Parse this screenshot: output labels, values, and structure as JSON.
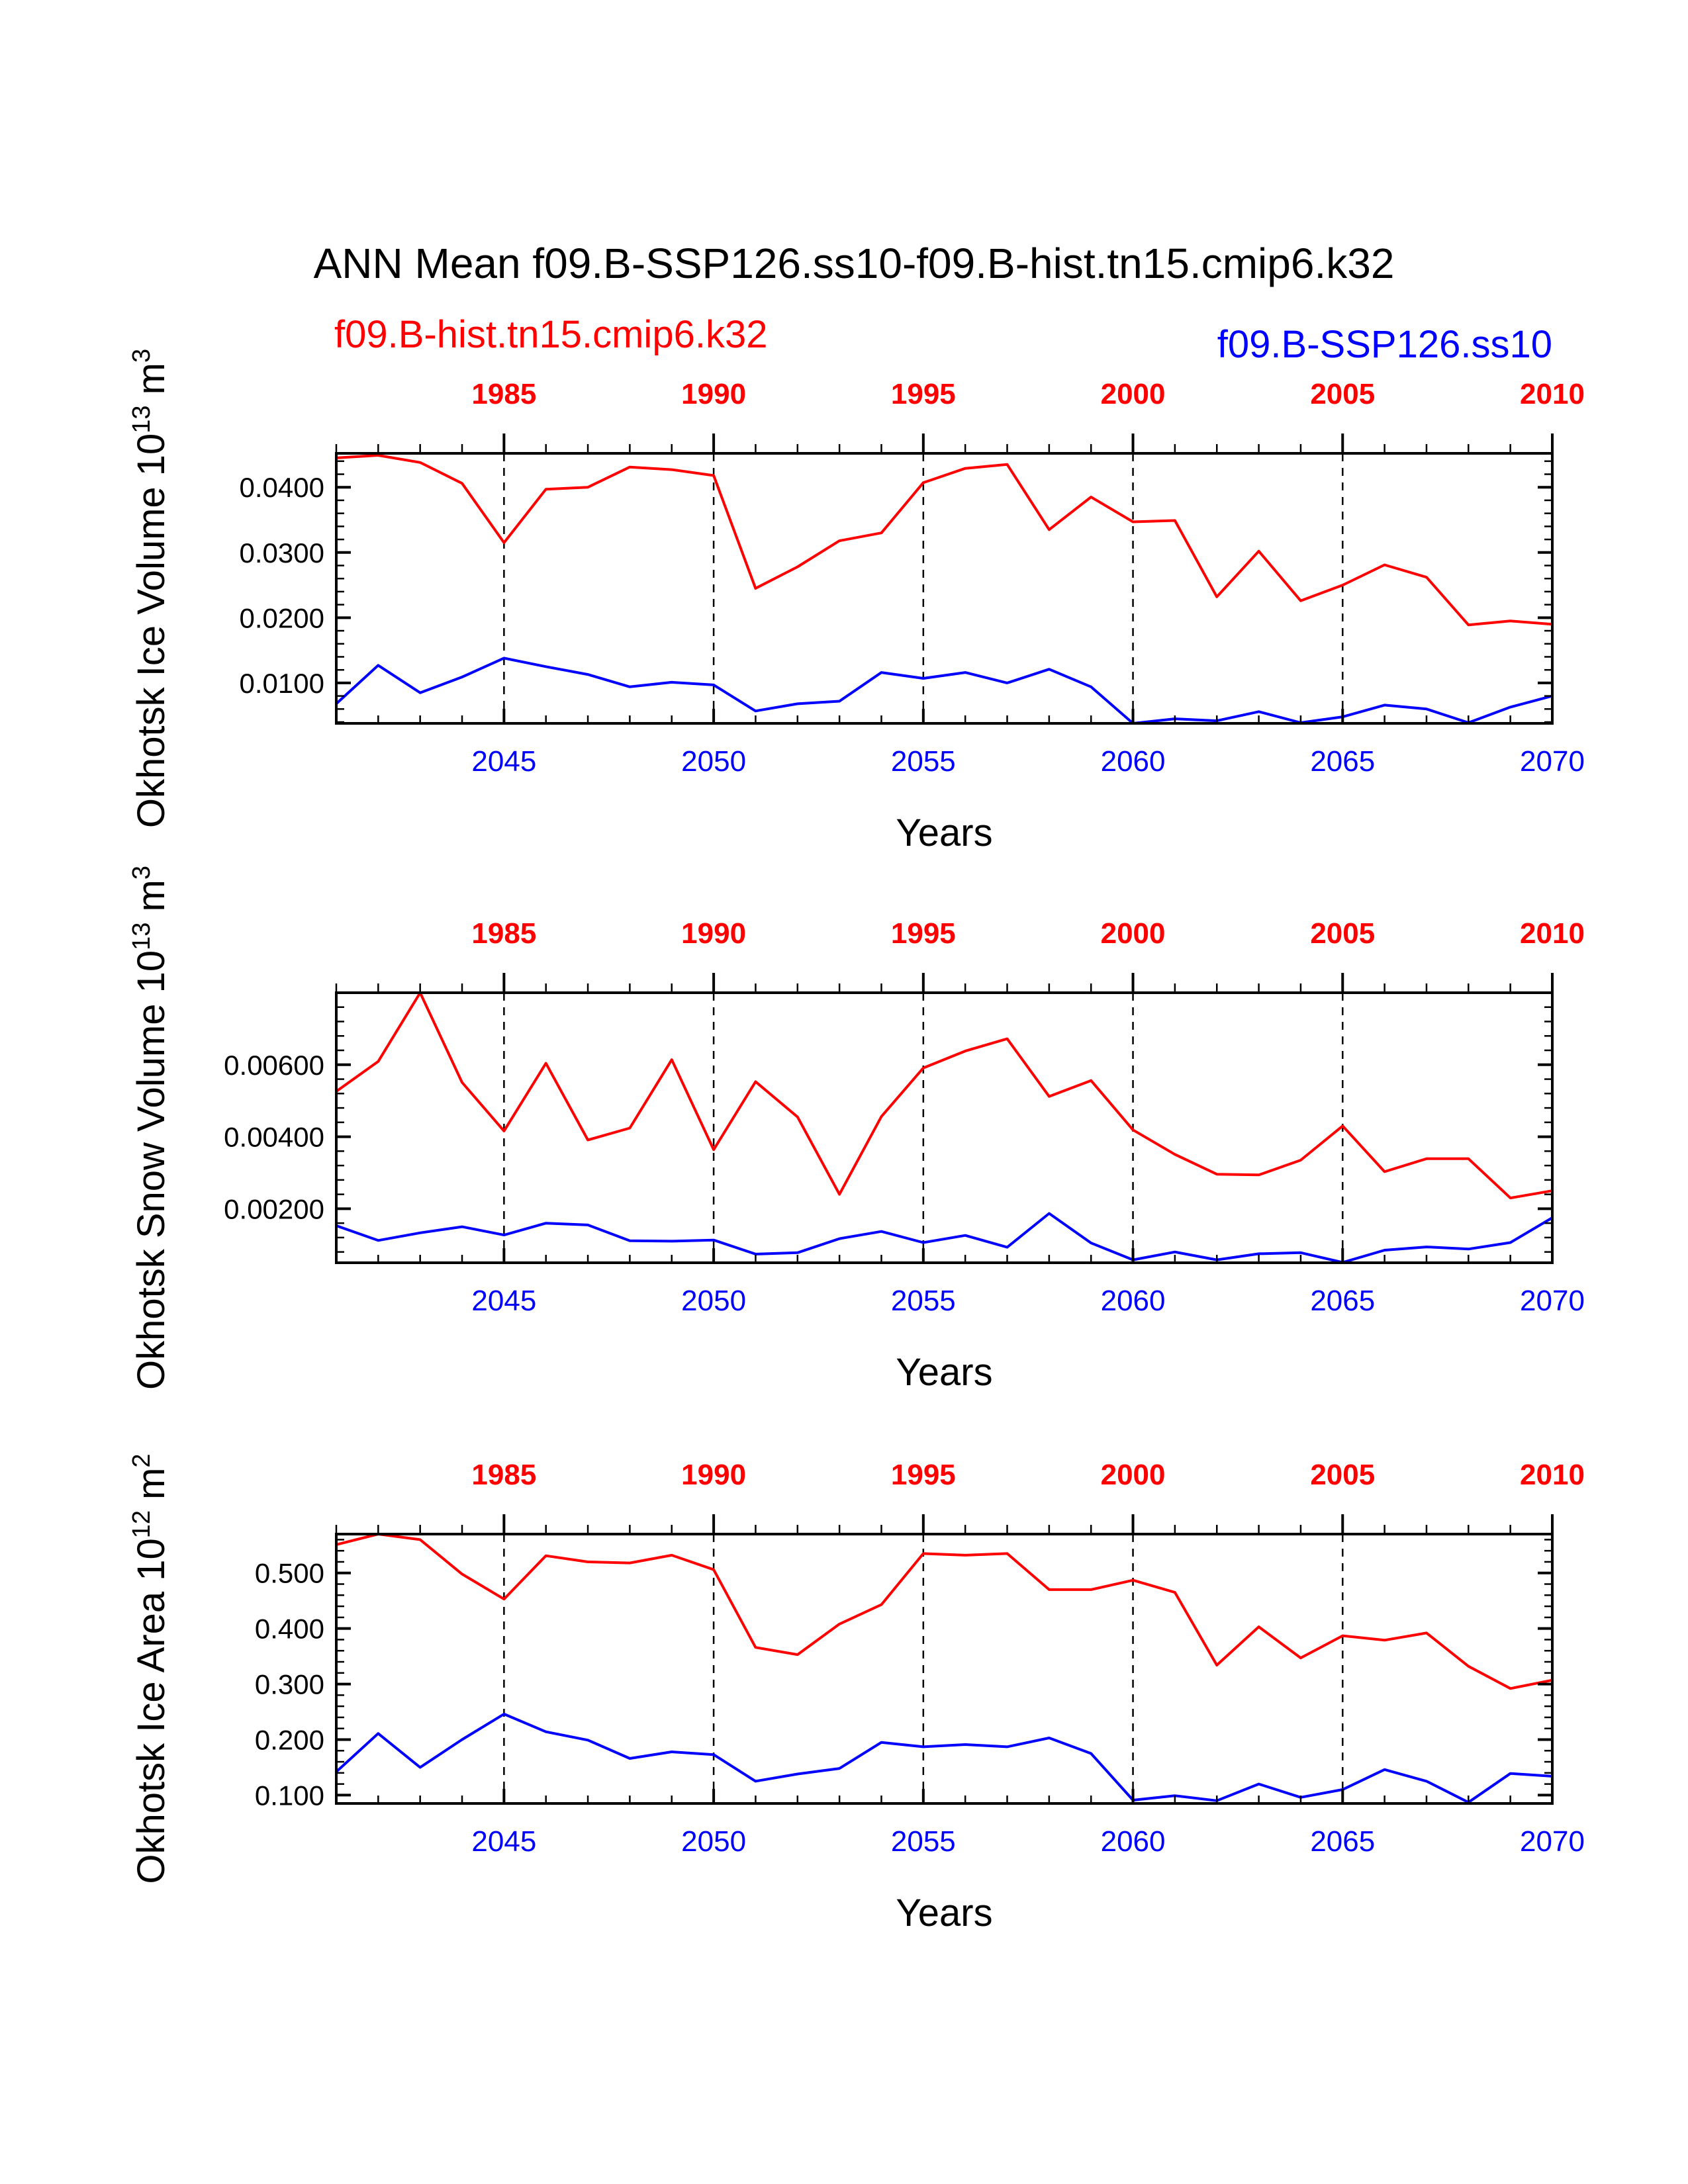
{
  "title": "ANN Mean f09.B-SSP126.ss10-f09.B-hist.tn15.cmip6.k32",
  "legend": {
    "hist": "f09.B-hist.tn15.cmip6.k32",
    "ssp": "f09.B-SSP126.ss10"
  },
  "colors": {
    "hist": "#ff0000",
    "ssp": "#0000ff",
    "axis": "#000000"
  },
  "chart_data": [
    {
      "type": "line",
      "ylabel": "Okhotsk Ice Volume 10^13 m^3",
      "xlabel": "Years",
      "x_bottom_ticks": [
        "2045",
        "2050",
        "2055",
        "2060",
        "2065",
        "2070"
      ],
      "x_top_ticks": [
        "1985",
        "1990",
        "1995",
        "2000",
        "2005",
        "2010"
      ],
      "ytick_labels": [
        "0.0100",
        "0.0200",
        "0.0300",
        "0.0400"
      ],
      "ytick_values": [
        0.01,
        0.02,
        0.03,
        0.04
      ],
      "ylim": [
        0.0038,
        0.0452
      ],
      "xlim_bottom": [
        2041,
        2070
      ],
      "xlim_top": [
        1981,
        2010
      ],
      "series": [
        {
          "name": "f09.B-hist.tn15.cmip6.k32",
          "axis": "top",
          "x": [
            1981,
            1982,
            1983,
            1984,
            1985,
            1986,
            1987,
            1988,
            1989,
            1990,
            1991,
            1992,
            1993,
            1994,
            1995,
            1996,
            1997,
            1998,
            1999,
            2000,
            2001,
            2002,
            2003,
            2004,
            2005,
            2006,
            2007,
            2008,
            2009,
            2010
          ],
          "values": [
            0.0445,
            0.0449,
            0.0438,
            0.0406,
            0.0315,
            0.0397,
            0.04,
            0.0431,
            0.0427,
            0.0418,
            0.0245,
            0.0278,
            0.0318,
            0.033,
            0.0407,
            0.0429,
            0.0435,
            0.0335,
            0.0385,
            0.0347,
            0.0349,
            0.0232,
            0.0302,
            0.0226,
            0.025,
            0.0281,
            0.0262,
            0.0189,
            0.0195,
            0.019
          ]
        },
        {
          "name": "f09.B-SSP126.ss10",
          "axis": "bottom",
          "x": [
            2041,
            2042,
            2043,
            2044,
            2045,
            2046,
            2047,
            2048,
            2049,
            2050,
            2051,
            2052,
            2053,
            2054,
            2055,
            2056,
            2057,
            2058,
            2059,
            2060,
            2061,
            2062,
            2063,
            2064,
            2065,
            2066,
            2067,
            2068,
            2069,
            2070
          ],
          "values": [
            0.0068,
            0.0127,
            0.0085,
            0.0109,
            0.0138,
            0.0125,
            0.0113,
            0.0094,
            0.0101,
            0.0097,
            0.0057,
            0.0068,
            0.0072,
            0.0116,
            0.0107,
            0.0116,
            0.01,
            0.0121,
            0.0094,
            0.0038,
            0.0045,
            0.0042,
            0.0056,
            0.0039,
            0.0048,
            0.0066,
            0.006,
            0.0039,
            0.0063,
            0.008
          ]
        }
      ]
    },
    {
      "type": "line",
      "ylabel": "Okhotsk Snow Volume 10^13 m^3",
      "xlabel": "Years",
      "x_bottom_ticks": [
        "2045",
        "2050",
        "2055",
        "2060",
        "2065",
        "2070"
      ],
      "x_top_ticks": [
        "1985",
        "1990",
        "1995",
        "2000",
        "2005",
        "2010"
      ],
      "ytick_labels": [
        "0.00200",
        "0.00400",
        "0.00600"
      ],
      "ytick_values": [
        0.002,
        0.004,
        0.006
      ],
      "ylim": [
        0.0005,
        0.008
      ],
      "xlim_bottom": [
        2041,
        2070
      ],
      "xlim_top": [
        1981,
        2010
      ],
      "series": [
        {
          "name": "f09.B-hist.tn15.cmip6.k32",
          "axis": "top",
          "x": [
            1981,
            1982,
            1983,
            1984,
            1985,
            1986,
            1987,
            1988,
            1989,
            1990,
            1991,
            1992,
            1993,
            1994,
            1995,
            1996,
            1997,
            1998,
            1999,
            2000,
            2001,
            2002,
            2003,
            2004,
            2005,
            2006,
            2007,
            2008,
            2009,
            2010
          ],
          "values": [
            0.00526,
            0.00609,
            0.008,
            0.00551,
            0.00416,
            0.00604,
            0.00391,
            0.00424,
            0.00614,
            0.00364,
            0.00553,
            0.00455,
            0.0024,
            0.00456,
            0.00591,
            0.00638,
            0.00672,
            0.00512,
            0.00556,
            0.00419,
            0.00351,
            0.00296,
            0.00294,
            0.00335,
            0.0043,
            0.00303,
            0.00339,
            0.00339,
            0.0023,
            0.0025
          ]
        },
        {
          "name": "f09.B-SSP126.ss10",
          "axis": "bottom",
          "x": [
            2041,
            2042,
            2043,
            2044,
            2045,
            2046,
            2047,
            2048,
            2049,
            2050,
            2051,
            2052,
            2053,
            2054,
            2055,
            2056,
            2057,
            2058,
            2059,
            2060,
            2061,
            2062,
            2063,
            2064,
            2065,
            2066,
            2067,
            2068,
            2069,
            2070
          ],
          "values": [
            0.00153,
            0.00112,
            0.00133,
            0.0015,
            0.00127,
            0.0016,
            0.00155,
            0.00111,
            0.0011,
            0.00113,
            0.00074,
            0.00078,
            0.00117,
            0.00137,
            0.00106,
            0.00126,
            0.00093,
            0.00187,
            0.00105,
            0.00058,
            0.0008,
            0.00058,
            0.00075,
            0.00078,
            0.00051,
            0.00085,
            0.00094,
            0.00088,
            0.00106,
            0.00175
          ]
        }
      ]
    },
    {
      "type": "line",
      "ylabel": "Okhotsk Ice Area 10^12 m^2",
      "xlabel": "Years",
      "x_bottom_ticks": [
        "2045",
        "2050",
        "2055",
        "2060",
        "2065",
        "2070"
      ],
      "x_top_ticks": [
        "1985",
        "1990",
        "1995",
        "2000",
        "2005",
        "2010"
      ],
      "ytick_labels": [
        "0.100",
        "0.200",
        "0.300",
        "0.400",
        "0.500"
      ],
      "ytick_values": [
        0.1,
        0.2,
        0.3,
        0.4,
        0.5
      ],
      "ylim": [
        0.085,
        0.57
      ],
      "xlim_bottom": [
        2041,
        2070
      ],
      "xlim_top": [
        1981,
        2010
      ],
      "series": [
        {
          "name": "f09.B-hist.tn15.cmip6.k32",
          "axis": "top",
          "x": [
            1981,
            1982,
            1983,
            1984,
            1985,
            1986,
            1987,
            1988,
            1989,
            1990,
            1991,
            1992,
            1993,
            1994,
            1995,
            1996,
            1997,
            1998,
            1999,
            2000,
            2001,
            2002,
            2003,
            2004,
            2005,
            2006,
            2007,
            2008,
            2009,
            2010
          ],
          "values": [
            0.551,
            0.57,
            0.56,
            0.498,
            0.453,
            0.531,
            0.52,
            0.518,
            0.532,
            0.506,
            0.366,
            0.353,
            0.408,
            0.443,
            0.535,
            0.532,
            0.535,
            0.47,
            0.47,
            0.487,
            0.465,
            0.334,
            0.403,
            0.347,
            0.387,
            0.379,
            0.392,
            0.332,
            0.292,
            0.307
          ]
        },
        {
          "name": "f09.B-SSP126.ss10",
          "axis": "bottom",
          "x": [
            2041,
            2042,
            2043,
            2044,
            2045,
            2046,
            2047,
            2048,
            2049,
            2050,
            2051,
            2052,
            2053,
            2054,
            2055,
            2056,
            2057,
            2058,
            2059,
            2060,
            2061,
            2062,
            2063,
            2064,
            2065,
            2066,
            2067,
            2068,
            2069,
            2070
          ],
          "values": [
            0.142,
            0.211,
            0.15,
            0.2,
            0.246,
            0.214,
            0.199,
            0.166,
            0.178,
            0.173,
            0.125,
            0.138,
            0.148,
            0.195,
            0.187,
            0.191,
            0.187,
            0.203,
            0.175,
            0.091,
            0.099,
            0.09,
            0.12,
            0.096,
            0.11,
            0.146,
            0.125,
            0.087,
            0.139,
            0.134
          ]
        }
      ]
    }
  ]
}
